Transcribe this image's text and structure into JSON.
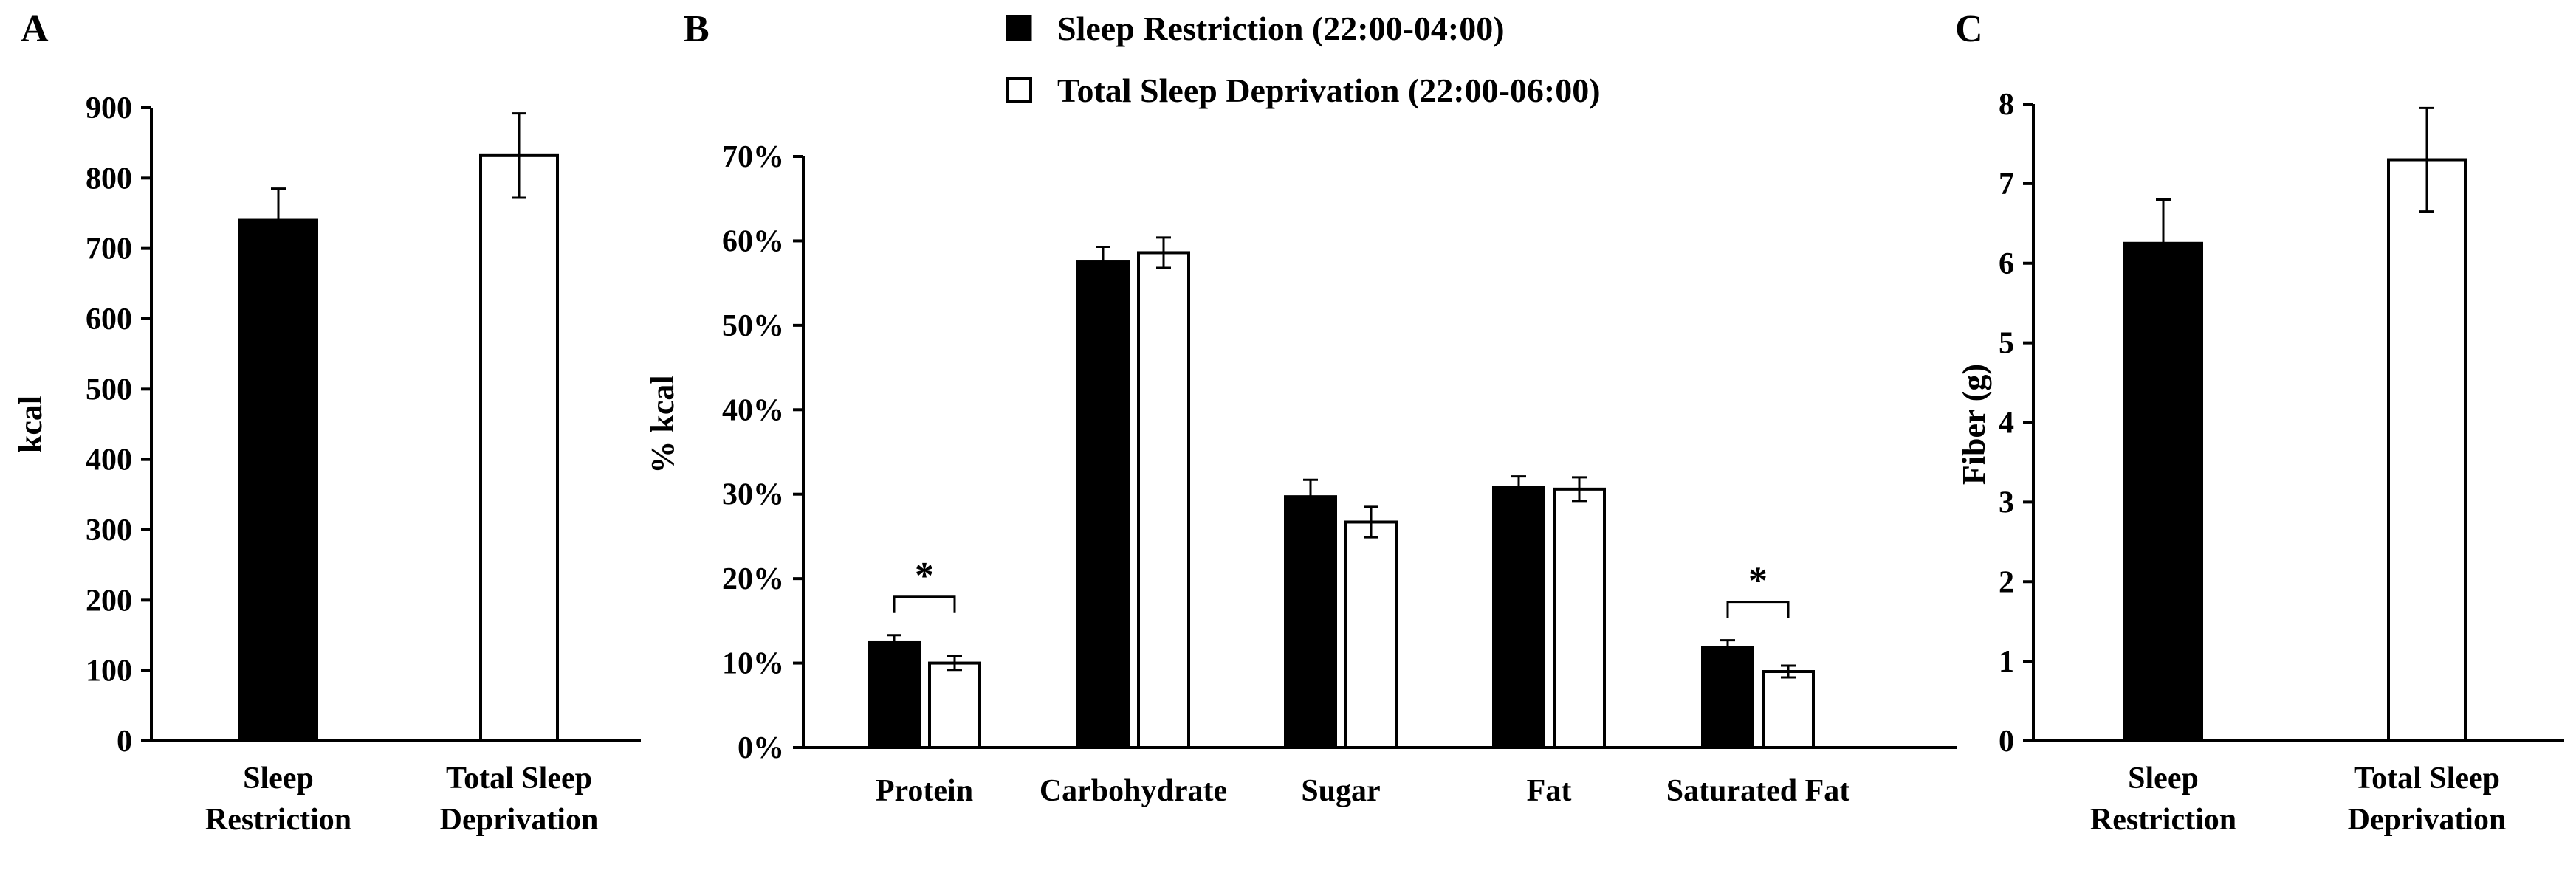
{
  "figure": {
    "legend": {
      "restriction": "Sleep Restriction (22:00-04:00)",
      "deprivation": "Total Sleep Deprivation (22:00-06:00)"
    },
    "colors": {
      "restriction": "#000000",
      "deprivation": "#ffffff",
      "axis": "#000000"
    }
  },
  "chart_data": [
    {
      "panel": "A",
      "type": "bar",
      "ylabel": "kcal",
      "ylim": [
        0,
        900
      ],
      "yticks": [
        "0",
        "100",
        "200",
        "300",
        "400",
        "500",
        "600",
        "700",
        "800",
        "900"
      ],
      "categories": [
        [
          "Sleep",
          "Restriction"
        ],
        [
          "Total Sleep",
          "Deprivation"
        ]
      ],
      "values": [
        740,
        832
      ],
      "errors": [
        45,
        60
      ],
      "fills": [
        "#000000",
        "#ffffff"
      ]
    },
    {
      "panel": "B",
      "type": "bar",
      "ylabel": "% kcal",
      "ylim": [
        0,
        70
      ],
      "yticks": [
        "0%",
        "10%",
        "20%",
        "30%",
        "40%",
        "50%",
        "60%",
        "70%"
      ],
      "categories": [
        "Protein",
        "Carbohydrate",
        "Sugar",
        "Fat",
        "Saturated Fat"
      ],
      "series": [
        {
          "name": "Sleep Restriction (22:00-04:00)",
          "fill": "#000000",
          "values": [
            12.5,
            57.5,
            29.7,
            30.8,
            11.8
          ],
          "errors": [
            0.8,
            1.8,
            2.0,
            1.3,
            0.9
          ]
        },
        {
          "name": "Total Sleep Deprivation (22:00-06:00)",
          "fill": "#ffffff",
          "values": [
            10.0,
            58.6,
            26.7,
            30.6,
            9.0
          ],
          "errors": [
            0.8,
            1.8,
            1.8,
            1.4,
            0.7
          ]
        }
      ],
      "significance": [
        {
          "category": "Protein",
          "label": "*"
        },
        {
          "category": "Saturated Fat",
          "label": "*"
        }
      ]
    },
    {
      "panel": "C",
      "type": "bar",
      "ylabel": "Fiber (g)",
      "ylim": [
        0,
        8
      ],
      "yticks": [
        "0",
        "1",
        "2",
        "3",
        "4",
        "5",
        "6",
        "7",
        "8"
      ],
      "categories": [
        [
          "Sleep",
          "Restriction"
        ],
        [
          "Total Sleep",
          "Deprivation"
        ]
      ],
      "values": [
        6.25,
        7.3
      ],
      "errors": [
        0.55,
        0.65
      ],
      "fills": [
        "#000000",
        "#ffffff"
      ]
    }
  ]
}
